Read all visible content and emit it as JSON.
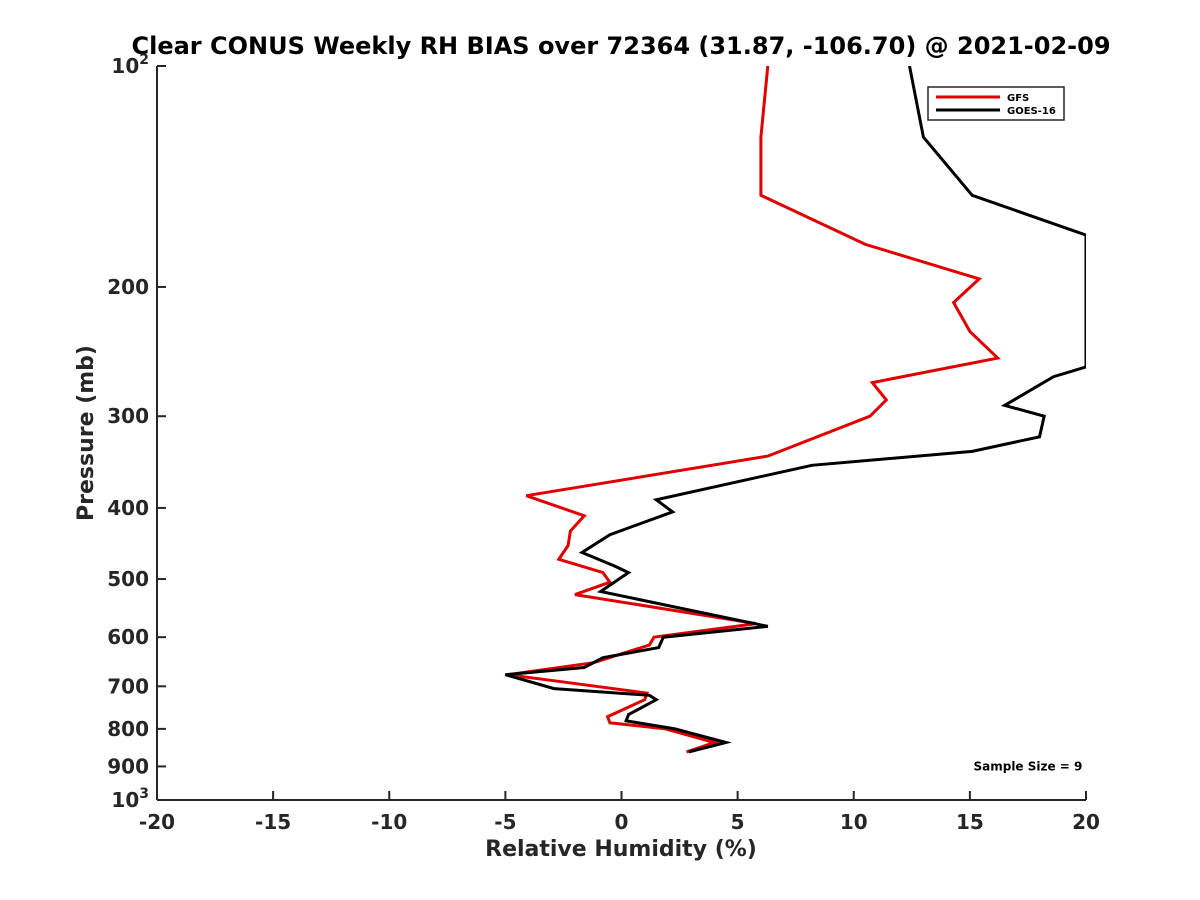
{
  "chart_data": {
    "type": "line",
    "title": "Clear CONUS Weekly RH BIAS over 72364 (31.87, -106.70) @ 2021-02-09",
    "xlabel": "Relative Humidity (%)",
    "ylabel": "Pressure (mb)",
    "xlim": [
      -20,
      20
    ],
    "ylim": [
      100,
      1000
    ],
    "y_scale": "log",
    "y_reversed": true,
    "grid": false,
    "legend_position": "top-right",
    "x_ticks": [
      -20,
      -15,
      -10,
      -5,
      0,
      5,
      10,
      15,
      20
    ],
    "x_tick_labels": [
      "-20",
      "-15",
      "-10",
      "-5",
      "0",
      "5",
      "10",
      "15",
      "20"
    ],
    "y_ticks": [
      100,
      200,
      300,
      400,
      500,
      600,
      700,
      800,
      900,
      1000
    ],
    "y_tick_labels": [
      {
        "base": "10",
        "sup": "2"
      },
      {
        "base": "200",
        "sup": ""
      },
      {
        "base": "300",
        "sup": ""
      },
      {
        "base": "400",
        "sup": ""
      },
      {
        "base": "500",
        "sup": ""
      },
      {
        "base": "600",
        "sup": ""
      },
      {
        "base": "700",
        "sup": ""
      },
      {
        "base": "800",
        "sup": ""
      },
      {
        "base": "900",
        "sup": ""
      },
      {
        "base": "10",
        "sup": "3"
      }
    ],
    "series": [
      {
        "name": "GFS",
        "color": "#e00000",
        "points": [
          [
            6.3,
            100
          ],
          [
            6.0,
            125
          ],
          [
            6.0,
            150
          ],
          [
            10.5,
            175
          ],
          [
            15.4,
            195
          ],
          [
            14.3,
            210
          ],
          [
            15.0,
            230
          ],
          [
            16.2,
            250
          ],
          [
            10.8,
            270
          ],
          [
            11.4,
            285
          ],
          [
            10.7,
            300
          ],
          [
            6.3,
            340
          ],
          [
            -4.1,
            385
          ],
          [
            -1.6,
            410
          ],
          [
            -2.2,
            430
          ],
          [
            -2.3,
            450
          ],
          [
            -2.7,
            470
          ],
          [
            -0.8,
            490
          ],
          [
            -0.5,
            505
          ],
          [
            -2.0,
            525
          ],
          [
            5.8,
            575
          ],
          [
            1.4,
            600
          ],
          [
            1.2,
            615
          ],
          [
            -1.2,
            650
          ],
          [
            -4.9,
            675
          ],
          [
            -2.6,
            690
          ],
          [
            1.1,
            715
          ],
          [
            1.0,
            730
          ],
          [
            -0.6,
            770
          ],
          [
            -0.5,
            785
          ],
          [
            1.9,
            800
          ],
          [
            4.0,
            835
          ],
          [
            2.8,
            860
          ]
        ]
      },
      {
        "name": "GOES-16",
        "color": "#000000",
        "points": [
          [
            12.4,
            100
          ],
          [
            13.0,
            125
          ],
          [
            15.1,
            150
          ],
          [
            20.0,
            170
          ],
          [
            20.0,
            257
          ],
          [
            18.6,
            265
          ],
          [
            16.5,
            290
          ],
          [
            18.2,
            300
          ],
          [
            18.0,
            320
          ],
          [
            15.1,
            335
          ],
          [
            8.2,
            350
          ],
          [
            1.5,
            390
          ],
          [
            2.2,
            405
          ],
          [
            -0.5,
            435
          ],
          [
            -1.7,
            460
          ],
          [
            -0.3,
            480
          ],
          [
            0.3,
            490
          ],
          [
            -0.9,
            520
          ],
          [
            6.3,
            580
          ],
          [
            1.8,
            600
          ],
          [
            1.6,
            620
          ],
          [
            -0.8,
            640
          ],
          [
            -1.6,
            660
          ],
          [
            -5.0,
            675
          ],
          [
            -2.9,
            705
          ],
          [
            1.2,
            720
          ],
          [
            1.5,
            730
          ],
          [
            0.3,
            765
          ],
          [
            0.2,
            780
          ],
          [
            2.3,
            800
          ],
          [
            4.5,
            835
          ],
          [
            2.9,
            860
          ]
        ]
      }
    ],
    "annotations": [
      {
        "text": "Sample Size = 9",
        "x": 17.5,
        "y": 900
      }
    ]
  }
}
